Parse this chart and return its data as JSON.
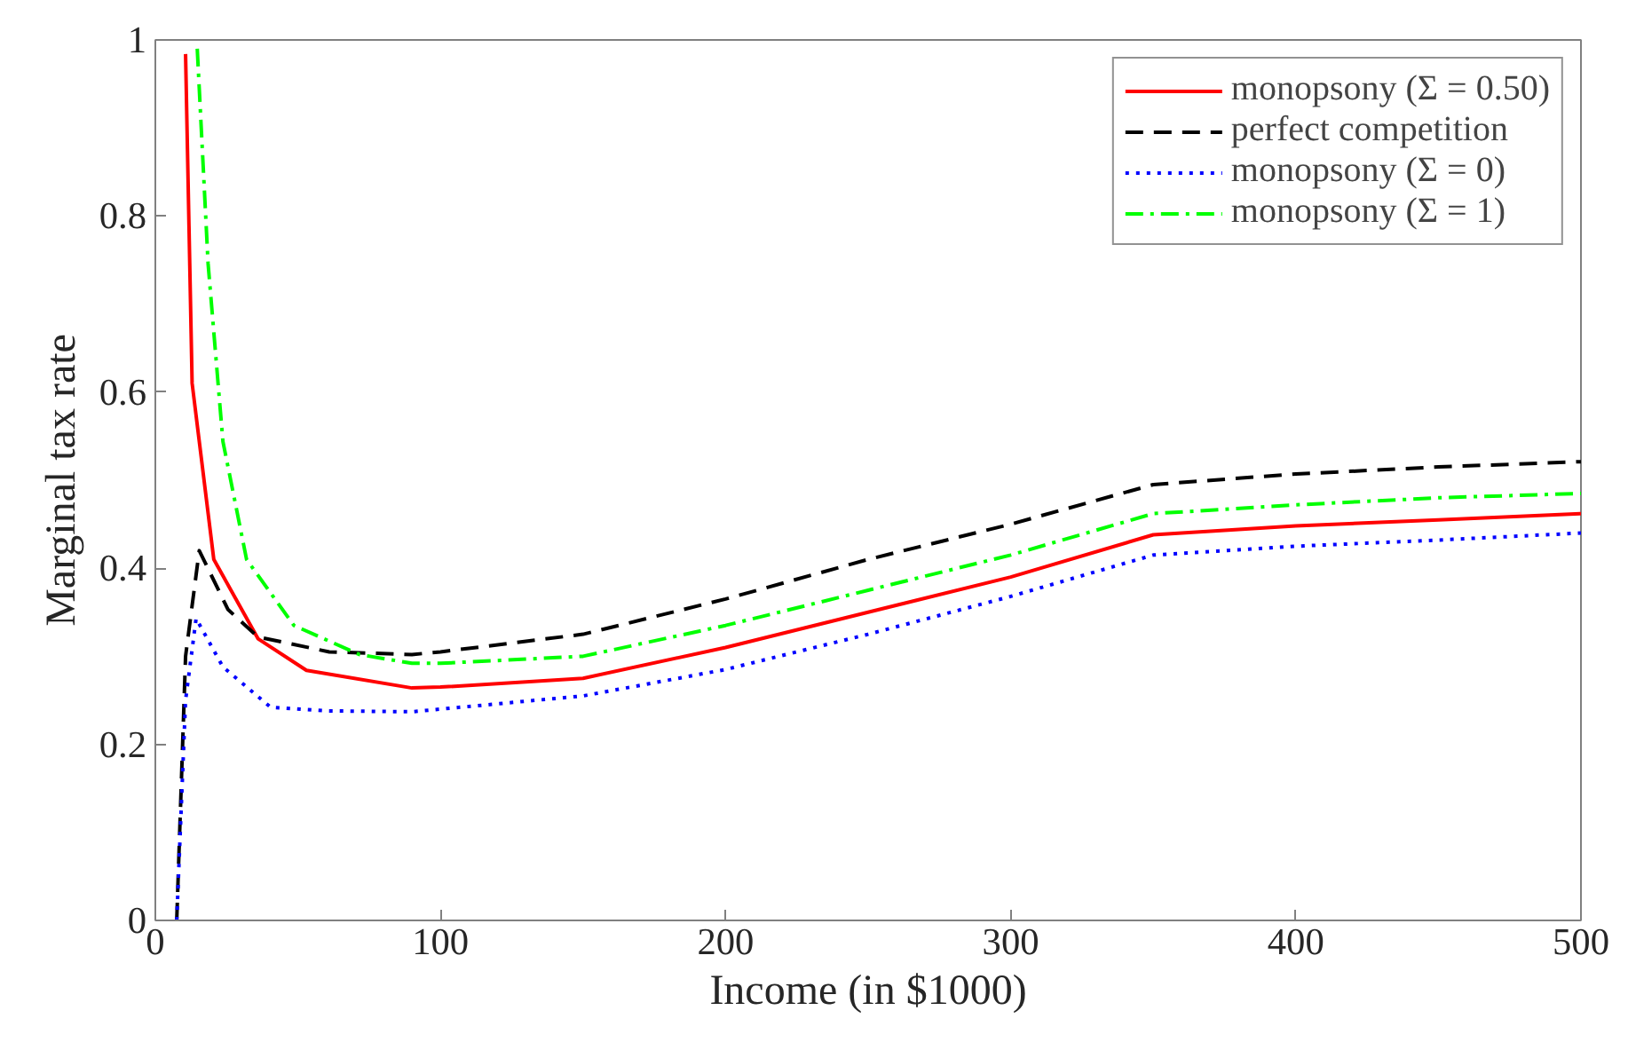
{
  "chart_data": {
    "type": "line",
    "xlabel": "Income (in $1000)",
    "ylabel": "Marginal tax rate",
    "xlim": [
      0,
      500
    ],
    "ylim": [
      0,
      1
    ],
    "xticks": [
      0,
      100,
      200,
      300,
      400,
      500
    ],
    "yticks": [
      0,
      0.2,
      0.4,
      0.6,
      0.8,
      1
    ],
    "grid": false,
    "legend": "top right",
    "series": [
      {
        "name": "monopsony (Σ = 0.50)",
        "color": "#ff0000",
        "line_style": "solid",
        "x": [
          10.6,
          12.9,
          20.5,
          36,
          53,
          90,
          100,
          150,
          200,
          250,
          300,
          350,
          400,
          450,
          500
        ],
        "values": [
          0.984,
          0.61,
          0.41,
          0.32,
          0.284,
          0.264,
          0.265,
          0.275,
          0.31,
          0.35,
          0.39,
          0.438,
          0.448,
          0.455,
          0.462
        ]
      },
      {
        "name": "perfect competition",
        "color": "#000000",
        "line_style": "dashed",
        "x": [
          7.5,
          10.6,
          15.4,
          25.5,
          36,
          61,
          90,
          100,
          150,
          200,
          250,
          300,
          350,
          400,
          450,
          500
        ],
        "values": [
          0,
          0.3,
          0.42,
          0.353,
          0.322,
          0.305,
          0.302,
          0.305,
          0.325,
          0.365,
          0.41,
          0.45,
          0.495,
          0.507,
          0.515,
          0.521
        ]
      },
      {
        "name": "monopsony (Σ = 0)",
        "color": "#0000ff",
        "line_style": "dotted",
        "x": [
          7.5,
          10.6,
          14.3,
          23.7,
          40.5,
          60,
          90,
          100,
          150,
          200,
          250,
          300,
          350,
          400,
          450,
          500
        ],
        "values": [
          0,
          0.25,
          0.343,
          0.288,
          0.242,
          0.238,
          0.237,
          0.24,
          0.255,
          0.285,
          0.325,
          0.368,
          0.415,
          0.425,
          0.432,
          0.44
        ]
      },
      {
        "name": "monopsony (Σ = 1)",
        "color": "#00ff00",
        "line_style": "dashdot",
        "x": [
          14.7,
          18.5,
          23.7,
          32,
          48.6,
          71.6,
          90,
          100,
          150,
          200,
          250,
          300,
          350,
          400,
          450,
          500
        ],
        "values": [
          0.99,
          0.746,
          0.544,
          0.41,
          0.335,
          0.302,
          0.292,
          0.292,
          0.3,
          0.335,
          0.375,
          0.415,
          0.462,
          0.472,
          0.48,
          0.485
        ]
      }
    ]
  }
}
